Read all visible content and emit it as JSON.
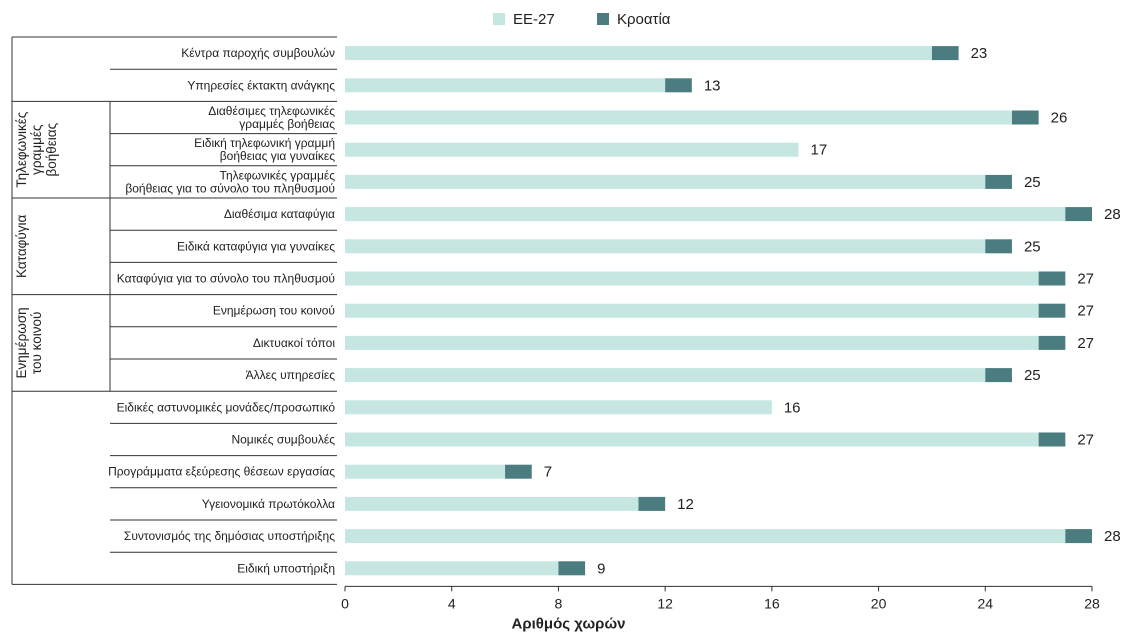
{
  "chart_data": {
    "type": "bar",
    "orientation": "horizontal",
    "stacked": true,
    "xlabel": "Αριθμός χωρών",
    "xlim": [
      0,
      28
    ],
    "xticks": [
      0,
      4,
      8,
      12,
      16,
      20,
      24,
      28
    ],
    "grid": false,
    "legend": {
      "placement": "top-center",
      "entries": [
        {
          "name": "ΕΕ-27",
          "color": "#c5e6e1"
        },
        {
          "name": "Κροατία",
          "color": "#4a7c80"
        }
      ]
    },
    "series": [
      {
        "name": "ΕΕ-27",
        "color": "#c5e6e1",
        "values": [
          22,
          12,
          25,
          17,
          24,
          27,
          24,
          26,
          26,
          26,
          24,
          16,
          26,
          6,
          11,
          27,
          8
        ]
      },
      {
        "name": "Κροατία",
        "color": "#4a7c80",
        "values": [
          1,
          1,
          1,
          0,
          1,
          1,
          1,
          1,
          1,
          1,
          1,
          0,
          1,
          1,
          1,
          1,
          1
        ]
      }
    ],
    "totals": [
      "23",
      "13",
      "26",
      "17",
      "25",
      "28",
      "25",
      "27",
      "27",
      "27",
      "25",
      "16",
      "27",
      "7",
      "12",
      "28",
      "9"
    ],
    "categories": [
      [
        "Κέντρα παροχής συμβουλών"
      ],
      [
        "Υπηρεσίες έκτακτη ανάγκης"
      ],
      [
        "Διαθέσιμες τηλεφωνικές",
        "γραμμές βοήθειας"
      ],
      [
        "Ειδική τηλεφωνική γραμμή",
        "βοήθειας για γυναίκες"
      ],
      [
        "Τηλεφωνικές γραμμές",
        "βοήθειας για το σύνολο του πληθυσμού"
      ],
      [
        "Διαθέσιμα καταφύγια"
      ],
      [
        "Ειδικά καταφύγια για γυναίκες"
      ],
      [
        "Καταφύγια για το σύνολο του πληθυσμού"
      ],
      [
        "Ενημέρωση του κοινού"
      ],
      [
        "Δικτυακοί τόποι"
      ],
      [
        "Άλλες υπηρεσίες"
      ],
      [
        "Ειδικές αστυνομικές μονάδες/προσωπικό"
      ],
      [
        "Νομικές συμβουλές"
      ],
      [
        "Προγράμματα εξεύρεσης θέσεων εργασίας"
      ],
      [
        "Υγειονομικά πρωτόκολλα"
      ],
      [
        "Συντονισμός της δημόσιας υποστήριξης"
      ],
      [
        "Ειδική υποστήριξη"
      ]
    ],
    "groups": [
      {
        "label": [
          "Τηλεφωνικές",
          "γραμμές",
          "βοήθειας"
        ],
        "start": 2,
        "end": 4
      },
      {
        "label": [
          "Καταφύγια"
        ],
        "start": 5,
        "end": 7
      },
      {
        "label": [
          "Ενημέρωση",
          "του κοινού"
        ],
        "start": 8,
        "end": 10
      }
    ]
  }
}
